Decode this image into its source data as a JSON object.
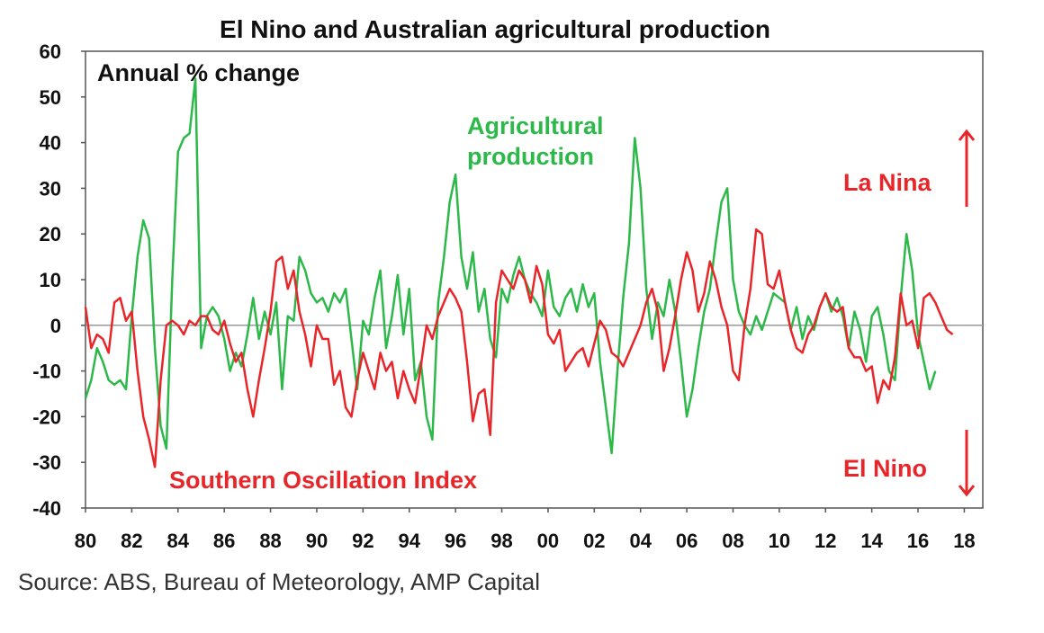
{
  "chart_data": {
    "type": "line",
    "title": "El Nino and Australian agricultural production",
    "subtitle": "Annual % change",
    "ylim": [
      -40,
      60
    ],
    "xlim": [
      1980,
      2018.8
    ],
    "yticks": [
      -40,
      -30,
      -20,
      -10,
      0,
      10,
      20,
      30,
      40,
      50,
      60
    ],
    "xtick_values": [
      1980,
      1982,
      1984,
      1986,
      1988,
      1990,
      1992,
      1994,
      1996,
      1998,
      2000,
      2002,
      2004,
      2006,
      2008,
      2010,
      2012,
      2014,
      2016,
      2018
    ],
    "xtick_labels": [
      "80",
      "82",
      "84",
      "86",
      "88",
      "90",
      "92",
      "94",
      "96",
      "98",
      "00",
      "02",
      "04",
      "06",
      "08",
      "10",
      "12",
      "14",
      "16",
      "18"
    ],
    "grid": false,
    "annotations": {
      "la_nina": "La Nina",
      "el_nino": "El Nino"
    },
    "series": [
      {
        "name": "Agricultural production",
        "label_line1": "Agricultural",
        "label_line2": "production",
        "color": "#2db84a",
        "points": [
          [
            1980.0,
            -16
          ],
          [
            1980.25,
            -12
          ],
          [
            1980.5,
            -5
          ],
          [
            1980.75,
            -8
          ],
          [
            1981.0,
            -12
          ],
          [
            1981.25,
            -13
          ],
          [
            1981.5,
            -12
          ],
          [
            1981.75,
            -14
          ],
          [
            1982.0,
            2
          ],
          [
            1982.25,
            15
          ],
          [
            1982.5,
            23
          ],
          [
            1982.75,
            19
          ],
          [
            1983.0,
            -5
          ],
          [
            1983.25,
            -22
          ],
          [
            1983.5,
            -27
          ],
          [
            1983.75,
            10
          ],
          [
            1984.0,
            38
          ],
          [
            1984.25,
            41
          ],
          [
            1984.5,
            42
          ],
          [
            1984.75,
            54
          ],
          [
            1985.0,
            -5
          ],
          [
            1985.25,
            2
          ],
          [
            1985.5,
            4
          ],
          [
            1985.75,
            2
          ],
          [
            1986.0,
            -3
          ],
          [
            1986.25,
            -10
          ],
          [
            1986.5,
            -6
          ],
          [
            1986.75,
            -9
          ],
          [
            1987.0,
            -2
          ],
          [
            1987.25,
            6
          ],
          [
            1987.5,
            -3
          ],
          [
            1987.75,
            3
          ],
          [
            1988.0,
            -2
          ],
          [
            1988.25,
            5
          ],
          [
            1988.5,
            -14
          ],
          [
            1988.75,
            2
          ],
          [
            1989.0,
            1
          ],
          [
            1989.25,
            15
          ],
          [
            1989.5,
            12
          ],
          [
            1989.75,
            7
          ],
          [
            1990.0,
            5
          ],
          [
            1990.25,
            6
          ],
          [
            1990.5,
            3
          ],
          [
            1990.75,
            7
          ],
          [
            1991.0,
            5
          ],
          [
            1991.25,
            8
          ],
          [
            1991.5,
            -3
          ],
          [
            1991.75,
            -14
          ],
          [
            1992.0,
            1
          ],
          [
            1992.25,
            -2
          ],
          [
            1992.5,
            6
          ],
          [
            1992.75,
            12
          ],
          [
            1993.0,
            -5
          ],
          [
            1993.25,
            2
          ],
          [
            1993.5,
            11
          ],
          [
            1993.75,
            -2
          ],
          [
            1994.0,
            8
          ],
          [
            1994.25,
            -12
          ],
          [
            1994.5,
            -8
          ],
          [
            1994.75,
            -20
          ],
          [
            1995.0,
            -25
          ],
          [
            1995.25,
            5
          ],
          [
            1995.5,
            15
          ],
          [
            1995.75,
            27
          ],
          [
            1996.0,
            33
          ],
          [
            1996.25,
            15
          ],
          [
            1996.5,
            8
          ],
          [
            1996.75,
            16
          ],
          [
            1997.0,
            3
          ],
          [
            1997.25,
            8
          ],
          [
            1997.5,
            -3
          ],
          [
            1997.75,
            -7
          ],
          [
            1998.0,
            8
          ],
          [
            1998.25,
            5
          ],
          [
            1998.5,
            11
          ],
          [
            1998.75,
            15
          ],
          [
            1999.0,
            10
          ],
          [
            1999.25,
            7
          ],
          [
            1999.5,
            5
          ],
          [
            1999.75,
            2
          ],
          [
            2000.0,
            12
          ],
          [
            2000.25,
            4
          ],
          [
            2000.5,
            2
          ],
          [
            2000.75,
            6
          ],
          [
            2001.0,
            8
          ],
          [
            2001.25,
            3
          ],
          [
            2001.5,
            9
          ],
          [
            2001.75,
            4
          ],
          [
            2002.0,
            7
          ],
          [
            2002.25,
            -8
          ],
          [
            2002.5,
            -18
          ],
          [
            2002.75,
            -28
          ],
          [
            2003.0,
            -10
          ],
          [
            2003.25,
            6
          ],
          [
            2003.5,
            18
          ],
          [
            2003.75,
            41
          ],
          [
            2004.0,
            30
          ],
          [
            2004.25,
            8
          ],
          [
            2004.5,
            -3
          ],
          [
            2004.75,
            5
          ],
          [
            2005.0,
            2
          ],
          [
            2005.25,
            10
          ],
          [
            2005.5,
            3
          ],
          [
            2005.75,
            -8
          ],
          [
            2006.0,
            -20
          ],
          [
            2006.25,
            -14
          ],
          [
            2006.5,
            -5
          ],
          [
            2006.75,
            3
          ],
          [
            2007.0,
            8
          ],
          [
            2007.25,
            18
          ],
          [
            2007.5,
            27
          ],
          [
            2007.75,
            30
          ],
          [
            2008.0,
            10
          ],
          [
            2008.25,
            3
          ],
          [
            2008.5,
            0
          ],
          [
            2008.75,
            -2
          ],
          [
            2009.0,
            2
          ],
          [
            2009.25,
            -1
          ],
          [
            2009.5,
            3
          ],
          [
            2009.75,
            7
          ],
          [
            2010.0,
            6
          ],
          [
            2010.25,
            5
          ],
          [
            2010.5,
            -1
          ],
          [
            2010.75,
            4
          ],
          [
            2011.0,
            -3
          ],
          [
            2011.25,
            2
          ],
          [
            2011.5,
            -1
          ],
          [
            2011.75,
            4
          ],
          [
            2012.0,
            7
          ],
          [
            2012.25,
            3
          ],
          [
            2012.5,
            6
          ],
          [
            2012.75,
            2
          ],
          [
            2013.0,
            -5
          ],
          [
            2013.25,
            3
          ],
          [
            2013.5,
            -1
          ],
          [
            2013.75,
            -8
          ],
          [
            2014.0,
            2
          ],
          [
            2014.25,
            4
          ],
          [
            2014.5,
            -2
          ],
          [
            2014.75,
            -10
          ],
          [
            2015.0,
            -12
          ],
          [
            2015.25,
            6
          ],
          [
            2015.5,
            20
          ],
          [
            2015.75,
            12
          ],
          [
            2016.0,
            -2
          ],
          [
            2016.25,
            -8
          ],
          [
            2016.5,
            -14
          ],
          [
            2016.75,
            -10
          ]
        ]
      },
      {
        "name": "Southern Oscillation Index",
        "label": "Southern Oscillation Index",
        "color": "#e8262a",
        "points": [
          [
            1980.0,
            4
          ],
          [
            1980.25,
            -5
          ],
          [
            1980.5,
            -2
          ],
          [
            1980.75,
            -3
          ],
          [
            1981.0,
            -6
          ],
          [
            1981.25,
            5
          ],
          [
            1981.5,
            6
          ],
          [
            1981.75,
            1
          ],
          [
            1982.0,
            3
          ],
          [
            1982.25,
            -10
          ],
          [
            1982.5,
            -20
          ],
          [
            1982.75,
            -25
          ],
          [
            1983.0,
            -31
          ],
          [
            1983.25,
            -12
          ],
          [
            1983.5,
            0
          ],
          [
            1983.75,
            1
          ],
          [
            1984.0,
            0
          ],
          [
            1984.25,
            -2
          ],
          [
            1984.5,
            1
          ],
          [
            1984.75,
            0
          ],
          [
            1985.0,
            2
          ],
          [
            1985.25,
            2
          ],
          [
            1985.5,
            -1
          ],
          [
            1985.75,
            -2
          ],
          [
            1986.0,
            1
          ],
          [
            1986.25,
            -4
          ],
          [
            1986.5,
            -8
          ],
          [
            1986.75,
            -6
          ],
          [
            1987.0,
            -14
          ],
          [
            1987.25,
            -20
          ],
          [
            1987.5,
            -12
          ],
          [
            1987.75,
            -5
          ],
          [
            1988.0,
            3
          ],
          [
            1988.25,
            14
          ],
          [
            1988.5,
            15
          ],
          [
            1988.75,
            8
          ],
          [
            1989.0,
            12
          ],
          [
            1989.25,
            3
          ],
          [
            1989.5,
            -2
          ],
          [
            1989.75,
            -9
          ],
          [
            1990.0,
            0
          ],
          [
            1990.25,
            -3
          ],
          [
            1990.5,
            -3
          ],
          [
            1990.75,
            -13
          ],
          [
            1991.0,
            -10
          ],
          [
            1991.25,
            -18
          ],
          [
            1991.5,
            -20
          ],
          [
            1991.75,
            -12
          ],
          [
            1992.0,
            -6
          ],
          [
            1992.25,
            -10
          ],
          [
            1992.5,
            -14
          ],
          [
            1992.75,
            -6
          ],
          [
            1993.0,
            -10
          ],
          [
            1993.25,
            -8
          ],
          [
            1993.5,
            -16
          ],
          [
            1993.75,
            -10
          ],
          [
            1994.0,
            -14
          ],
          [
            1994.25,
            -17
          ],
          [
            1994.5,
            -9
          ],
          [
            1994.75,
            0
          ],
          [
            1995.0,
            -3
          ],
          [
            1995.25,
            2
          ],
          [
            1995.5,
            5
          ],
          [
            1995.75,
            8
          ],
          [
            1996.0,
            6
          ],
          [
            1996.25,
            3
          ],
          [
            1996.5,
            -8
          ],
          [
            1996.75,
            -21
          ],
          [
            1997.0,
            -15
          ],
          [
            1997.25,
            -14
          ],
          [
            1997.5,
            -24
          ],
          [
            1997.75,
            5
          ],
          [
            1998.0,
            12
          ],
          [
            1998.25,
            10
          ],
          [
            1998.5,
            8
          ],
          [
            1998.75,
            12
          ],
          [
            1999.0,
            10
          ],
          [
            1999.25,
            5
          ],
          [
            1999.5,
            13
          ],
          [
            1999.75,
            9
          ],
          [
            2000.0,
            -2
          ],
          [
            2000.25,
            -4
          ],
          [
            2000.5,
            -1
          ],
          [
            2000.75,
            -10
          ],
          [
            2001.0,
            -8
          ],
          [
            2001.25,
            -6
          ],
          [
            2001.5,
            -5
          ],
          [
            2001.75,
            -9
          ],
          [
            2002.0,
            -4
          ],
          [
            2002.25,
            1
          ],
          [
            2002.5,
            -1
          ],
          [
            2002.75,
            -6
          ],
          [
            2003.0,
            -7
          ],
          [
            2003.25,
            -9
          ],
          [
            2003.5,
            -6
          ],
          [
            2003.75,
            -3
          ],
          [
            2004.0,
            0
          ],
          [
            2004.25,
            5
          ],
          [
            2004.5,
            8
          ],
          [
            2004.75,
            3
          ],
          [
            2005.0,
            -10
          ],
          [
            2005.25,
            -5
          ],
          [
            2005.5,
            2
          ],
          [
            2005.75,
            10
          ],
          [
            2006.0,
            16
          ],
          [
            2006.25,
            12
          ],
          [
            2006.5,
            3
          ],
          [
            2006.75,
            7
          ],
          [
            2007.0,
            14
          ],
          [
            2007.25,
            10
          ],
          [
            2007.5,
            4
          ],
          [
            2007.75,
            0
          ],
          [
            2008.0,
            -10
          ],
          [
            2008.25,
            -12
          ],
          [
            2008.5,
            0
          ],
          [
            2008.75,
            8
          ],
          [
            2009.0,
            21
          ],
          [
            2009.25,
            20
          ],
          [
            2009.5,
            9
          ],
          [
            2009.75,
            8
          ],
          [
            2010.0,
            12
          ],
          [
            2010.25,
            5
          ],
          [
            2010.5,
            -1
          ],
          [
            2010.75,
            -5
          ],
          [
            2011.0,
            -6
          ],
          [
            2011.25,
            -2
          ],
          [
            2011.5,
            0
          ],
          [
            2011.75,
            4
          ],
          [
            2012.0,
            7
          ],
          [
            2012.25,
            4
          ],
          [
            2012.5,
            3
          ],
          [
            2012.75,
            4
          ],
          [
            2013.0,
            -5
          ],
          [
            2013.25,
            -7
          ],
          [
            2013.5,
            -7
          ],
          [
            2013.75,
            -10
          ],
          [
            2014.0,
            -9
          ],
          [
            2014.25,
            -17
          ],
          [
            2014.5,
            -12
          ],
          [
            2014.75,
            -14
          ],
          [
            2015.0,
            -7
          ],
          [
            2015.25,
            7
          ],
          [
            2015.5,
            0
          ],
          [
            2015.75,
            1
          ],
          [
            2016.0,
            -5
          ],
          [
            2016.25,
            6
          ],
          [
            2016.5,
            7
          ],
          [
            2016.75,
            5
          ],
          [
            2017.0,
            2
          ],
          [
            2017.25,
            -1
          ],
          [
            2017.5,
            -2
          ]
        ]
      }
    ]
  },
  "source": "Source: ABS, Bureau of Meteorology, AMP Capital"
}
